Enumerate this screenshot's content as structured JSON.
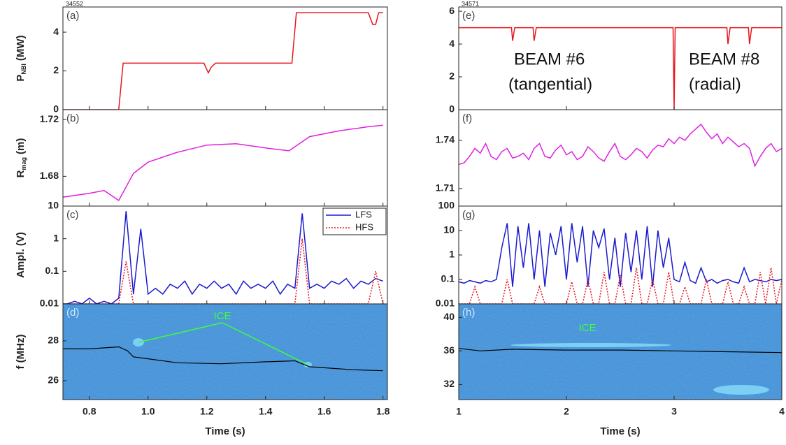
{
  "chart_data": [
    {
      "type": "line",
      "label": "(a)",
      "shot": "34552",
      "ylabel": "P",
      "ylabel_sub": "NBI",
      "ylabel_unit": "(MW)",
      "xlim": [
        0.71,
        1.815
      ],
      "ylim": [
        0,
        5.3
      ],
      "yticks": [
        0,
        2,
        4
      ],
      "x": [
        0.7,
        0.9,
        0.915,
        1.19,
        1.205,
        1.215,
        1.23,
        1.49,
        1.505,
        1.75,
        1.765,
        1.775,
        1.785,
        1.8
      ],
      "series": [
        {
          "color": "#e8141c",
          "values": [
            0,
            0,
            2.4,
            2.4,
            1.9,
            2.2,
            2.4,
            2.4,
            5,
            5,
            4.4,
            4.4,
            5,
            5
          ]
        }
      ]
    },
    {
      "type": "line",
      "label": "(b)",
      "ylabel": "R",
      "ylabel_sub": "mag",
      "ylabel_unit": "(m)",
      "xlim": [
        0.71,
        1.815
      ],
      "ylim": [
        1.659,
        1.727
      ],
      "yticks": [
        1.68,
        1.72
      ],
      "x": [
        0.7,
        0.8,
        0.85,
        0.9,
        0.95,
        1.0,
        1.1,
        1.2,
        1.3,
        1.4,
        1.48,
        1.55,
        1.65,
        1.75,
        1.8
      ],
      "series": [
        {
          "color": "#e020e0",
          "values": [
            1.665,
            1.668,
            1.67,
            1.663,
            1.682,
            1.69,
            1.697,
            1.702,
            1.703,
            1.7,
            1.698,
            1.708,
            1.712,
            1.715,
            1.716
          ]
        }
      ]
    },
    {
      "type": "line",
      "label": "(c)",
      "ylabel": "Ampl. (V)",
      "log": true,
      "legend": "upper right",
      "xlim": [
        0.71,
        1.815
      ],
      "ylim": [
        0.01,
        10
      ],
      "yticks": [
        0.01,
        0.1,
        1,
        10
      ],
      "x": [
        0.7,
        0.725,
        0.75,
        0.775,
        0.8,
        0.825,
        0.85,
        0.875,
        0.9,
        0.925,
        0.95,
        0.975,
        1.0,
        1.025,
        1.05,
        1.075,
        1.1,
        1.125,
        1.15,
        1.175,
        1.2,
        1.225,
        1.25,
        1.275,
        1.3,
        1.325,
        1.35,
        1.375,
        1.4,
        1.425,
        1.45,
        1.475,
        1.5,
        1.525,
        1.55,
        1.575,
        1.6,
        1.625,
        1.65,
        1.675,
        1.7,
        1.725,
        1.75,
        1.775,
        1.8
      ],
      "series": [
        {
          "name": "LFS",
          "color": "#1a1ad0",
          "linestyle": "solid",
          "values": [
            0.01,
            0.01,
            0.012,
            0.01,
            0.015,
            0.01,
            0.012,
            0.01,
            0.015,
            7,
            0.02,
            2,
            0.02,
            0.03,
            0.02,
            0.04,
            0.03,
            0.05,
            0.02,
            0.04,
            0.03,
            0.05,
            0.03,
            0.04,
            0.02,
            0.05,
            0.03,
            0.04,
            0.03,
            0.05,
            0.02,
            0.04,
            0.03,
            6,
            0.03,
            0.04,
            0.03,
            0.05,
            0.04,
            0.06,
            0.03,
            0.05,
            0.04,
            0.06,
            0.05
          ]
        },
        {
          "name": "HFS",
          "color": "#e8141c",
          "linestyle": "dotted",
          "values": [
            0.01,
            0.01,
            0.01,
            0.01,
            0.01,
            0.01,
            0.01,
            0.01,
            0.01,
            0.2,
            0.01,
            0.01,
            0.01,
            0.01,
            0.01,
            0.01,
            0.01,
            0.01,
            0.01,
            0.01,
            0.01,
            0.01,
            0.01,
            0.01,
            0.01,
            0.01,
            0.01,
            0.01,
            0.01,
            0.01,
            0.01,
            0.01,
            0.01,
            1,
            0.01,
            0.01,
            0.01,
            0.01,
            0.01,
            0.01,
            0.01,
            0.01,
            0.01,
            0.1,
            0.01
          ]
        }
      ]
    },
    {
      "type": "spectrogram",
      "label": "(d)",
      "ylabel": "f (MHz)",
      "xlabel": "Time (s)",
      "annotations": [
        "ICE"
      ],
      "xlim": [
        0.71,
        1.815
      ],
      "xticks": [
        0.8,
        {
          "value": 1,
          "label": "1.0"
        },
        1.2,
        1.4,
        1.6,
        1.8
      ],
      "ylim": [
        25.05,
        29.86
      ],
      "yticks": [
        26,
        28
      ],
      "x": [
        0.7,
        0.8,
        0.9,
        0.93,
        0.95,
        1.0,
        1.1,
        1.25,
        1.4,
        1.5,
        1.55,
        1.7,
        1.8
      ],
      "series": [
        {
          "color": "#000000",
          "values": [
            27.6,
            27.6,
            27.7,
            27.5,
            27.2,
            27.1,
            26.9,
            26.85,
            26.95,
            27.0,
            26.7,
            26.55,
            26.5
          ]
        }
      ]
    },
    {
      "type": "line",
      "label": "(e)",
      "shot": "34571",
      "annotations": [
        "BEAM #6",
        "(tangential)",
        "BEAM #8",
        "(radial)"
      ],
      "xlim": [
        1,
        4
      ],
      "ylim": [
        0,
        6.26
      ],
      "yticks": [
        0,
        2,
        4,
        6
      ],
      "x": [
        1,
        1.49,
        1.5,
        1.52,
        1.69,
        1.7,
        1.72,
        2.99,
        3.0,
        3.01,
        3.49,
        3.5,
        3.52,
        3.69,
        3.7,
        3.72,
        4
      ],
      "series": [
        {
          "color": "#e8141c",
          "values": [
            5,
            5,
            4.2,
            5,
            5,
            4.2,
            5,
            5,
            0,
            5,
            5,
            4.0,
            5,
            5,
            4.0,
            5,
            5
          ]
        }
      ]
    },
    {
      "type": "line",
      "label": "(f)",
      "xlim": [
        1,
        4
      ],
      "ylim": [
        1.6991,
        1.7591
      ],
      "yticks": [
        1.71,
        1.74
      ],
      "x": [
        1.0,
        1.05,
        1.1,
        1.15,
        1.2,
        1.25,
        1.3,
        1.35,
        1.4,
        1.45,
        1.5,
        1.55,
        1.6,
        1.65,
        1.7,
        1.75,
        1.8,
        1.85,
        1.9,
        1.95,
        2.0,
        2.05,
        2.1,
        2.15,
        2.2,
        2.25,
        2.3,
        2.35,
        2.4,
        2.45,
        2.5,
        2.55,
        2.6,
        2.65,
        2.7,
        2.75,
        2.8,
        2.85,
        2.9,
        2.95,
        3.0,
        3.05,
        3.1,
        3.15,
        3.2,
        3.25,
        3.3,
        3.35,
        3.4,
        3.45,
        3.5,
        3.55,
        3.6,
        3.65,
        3.7,
        3.75,
        3.8,
        3.85,
        3.9,
        3.95,
        4.0
      ],
      "series": [
        {
          "color": "#e020e0",
          "values": [
            1.725,
            1.726,
            1.73,
            1.735,
            1.732,
            1.738,
            1.73,
            1.728,
            1.733,
            1.735,
            1.729,
            1.73,
            1.732,
            1.728,
            1.735,
            1.738,
            1.73,
            1.729,
            1.734,
            1.737,
            1.731,
            1.733,
            1.728,
            1.73,
            1.736,
            1.733,
            1.729,
            1.727,
            1.733,
            1.738,
            1.73,
            1.728,
            1.731,
            1.735,
            1.733,
            1.729,
            1.734,
            1.737,
            1.736,
            1.741,
            1.738,
            1.742,
            1.74,
            1.744,
            1.747,
            1.75,
            1.745,
            1.741,
            1.744,
            1.738,
            1.742,
            1.739,
            1.736,
            1.738,
            1.735,
            1.724,
            1.73,
            1.735,
            1.738,
            1.733,
            1.735
          ]
        }
      ]
    },
    {
      "type": "line",
      "label": "(g)",
      "log": true,
      "xlim": [
        1,
        4
      ],
      "ylim": [
        0.01,
        100
      ],
      "yticks": [
        0.01,
        0.1,
        1,
        10,
        100
      ],
      "x": [
        1.0,
        1.05,
        1.1,
        1.15,
        1.2,
        1.25,
        1.3,
        1.35,
        1.4,
        1.45,
        1.5,
        1.55,
        1.6,
        1.65,
        1.7,
        1.75,
        1.8,
        1.85,
        1.9,
        1.95,
        2.0,
        2.05,
        2.1,
        2.15,
        2.2,
        2.25,
        2.3,
        2.35,
        2.4,
        2.45,
        2.5,
        2.55,
        2.6,
        2.65,
        2.7,
        2.75,
        2.8,
        2.85,
        2.9,
        2.95,
        3.0,
        3.05,
        3.1,
        3.15,
        3.2,
        3.25,
        3.3,
        3.35,
        3.4,
        3.45,
        3.5,
        3.55,
        3.6,
        3.65,
        3.7,
        3.75,
        3.8,
        3.85,
        3.9,
        3.95,
        4.0
      ],
      "series": [
        {
          "color": "#1a1ad0",
          "linestyle": "solid",
          "values": [
            0.08,
            0.07,
            0.09,
            0.08,
            0.07,
            0.09,
            0.08,
            0.1,
            2,
            20,
            0.05,
            15,
            0.3,
            20,
            0.1,
            10,
            0.05,
            8,
            1,
            15,
            0.1,
            20,
            0.5,
            15,
            0.05,
            10,
            2,
            12,
            0.1,
            5,
            0.05,
            8,
            0.2,
            10,
            0.1,
            15,
            0.05,
            10,
            0.3,
            5,
            0.1,
            0.08,
            0.5,
            0.09,
            0.07,
            0.3,
            0.08,
            0.1,
            0.07,
            0.09,
            0.1,
            0.08,
            0.07,
            0.3,
            0.08,
            0.1,
            0.09,
            0.08,
            0.1,
            0.09,
            0.1
          ]
        },
        {
          "color": "#e8141c",
          "linestyle": "dotted",
          "values": [
            0.01,
            0.01,
            0.01,
            0.05,
            0.01,
            0.01,
            0.01,
            0.01,
            0.01,
            0.1,
            0.01,
            0.01,
            0.01,
            0.01,
            0.01,
            0.05,
            0.01,
            0.01,
            0.01,
            0.01,
            0.01,
            0.08,
            0.01,
            0.01,
            0.1,
            0.01,
            0.01,
            0.2,
            0.01,
            0.01,
            0.15,
            0.01,
            0.01,
            0.3,
            0.01,
            0.01,
            0.1,
            0.01,
            0.01,
            0.2,
            0.01,
            0.01,
            0.05,
            0.01,
            0.01,
            0.01,
            0.1,
            0.01,
            0.01,
            0.01,
            0.08,
            0.01,
            0.01,
            0.05,
            0.01,
            0.01,
            0.2,
            0.01,
            0.3,
            0.01,
            0.1
          ]
        }
      ]
    },
    {
      "type": "spectrogram",
      "label": "(h)",
      "xlabel": "Time (s)",
      "annotations": [
        "ICE"
      ],
      "xlim": [
        1,
        4
      ],
      "xticks": [
        1,
        2,
        3,
        4
      ],
      "ylim": [
        30.2,
        41.6
      ],
      "yticks": [
        32,
        36,
        40
      ],
      "x": [
        1,
        1.2,
        1.5,
        2,
        2.5,
        3,
        3.5,
        4
      ],
      "series": [
        {
          "color": "#000000",
          "values": [
            36.3,
            36.0,
            36.2,
            36.1,
            36.1,
            36.0,
            35.9,
            35.8
          ]
        }
      ]
    }
  ]
}
